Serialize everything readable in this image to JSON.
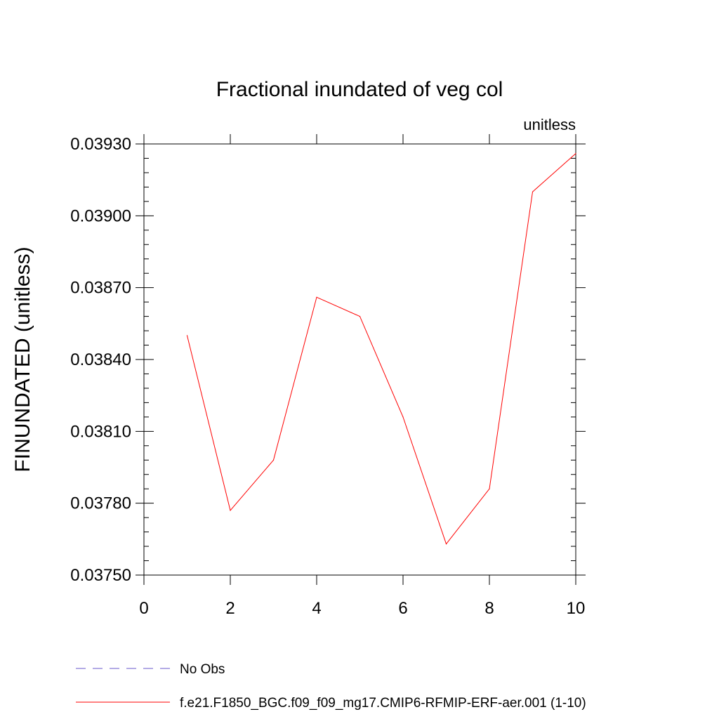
{
  "chart_data": {
    "type": "line",
    "title": "Fractional inundated of veg col",
    "units_label": "unitless",
    "ylabel": "FINUNDATED  (unitless)",
    "xlabel": "",
    "xlim": [
      0,
      10
    ],
    "ylim": [
      0.0375,
      0.0393
    ],
    "x_ticks": [
      0,
      2,
      4,
      6,
      8,
      10
    ],
    "x_tick_labels": [
      "0",
      "2",
      "4",
      "6",
      "8",
      "10"
    ],
    "y_ticks": [
      0.0375,
      0.0378,
      0.0381,
      0.0384,
      0.0387,
      0.039,
      0.0393
    ],
    "y_tick_labels": [
      "0.03750",
      "0.03780",
      "0.03810",
      "0.03840",
      "0.03870",
      "0.03900",
      "0.03930"
    ],
    "grid": false,
    "legend_placement": "bottom",
    "series": [
      {
        "name": "f.e21.F1850_BGC.f09_f09_mg17.CMIP6-RFMIP-ERF-aer.001 (1-10)",
        "color": "#ff0000",
        "style": "solid",
        "x": [
          1,
          2,
          3,
          4,
          5,
          6,
          7,
          8,
          9,
          10
        ],
        "y": [
          0.0385,
          0.03777,
          0.03798,
          0.03866,
          0.03858,
          0.03816,
          0.03763,
          0.03786,
          0.0391,
          0.03926
        ]
      }
    ],
    "legend": [
      {
        "label": "No Obs",
        "color": "#6a5acd",
        "style": "dashed"
      },
      {
        "label": "f.e21.F1850_BGC.f09_f09_mg17.CMIP6-RFMIP-ERF-aer.001 (1-10)",
        "color": "#ff0000",
        "style": "solid"
      }
    ]
  }
}
